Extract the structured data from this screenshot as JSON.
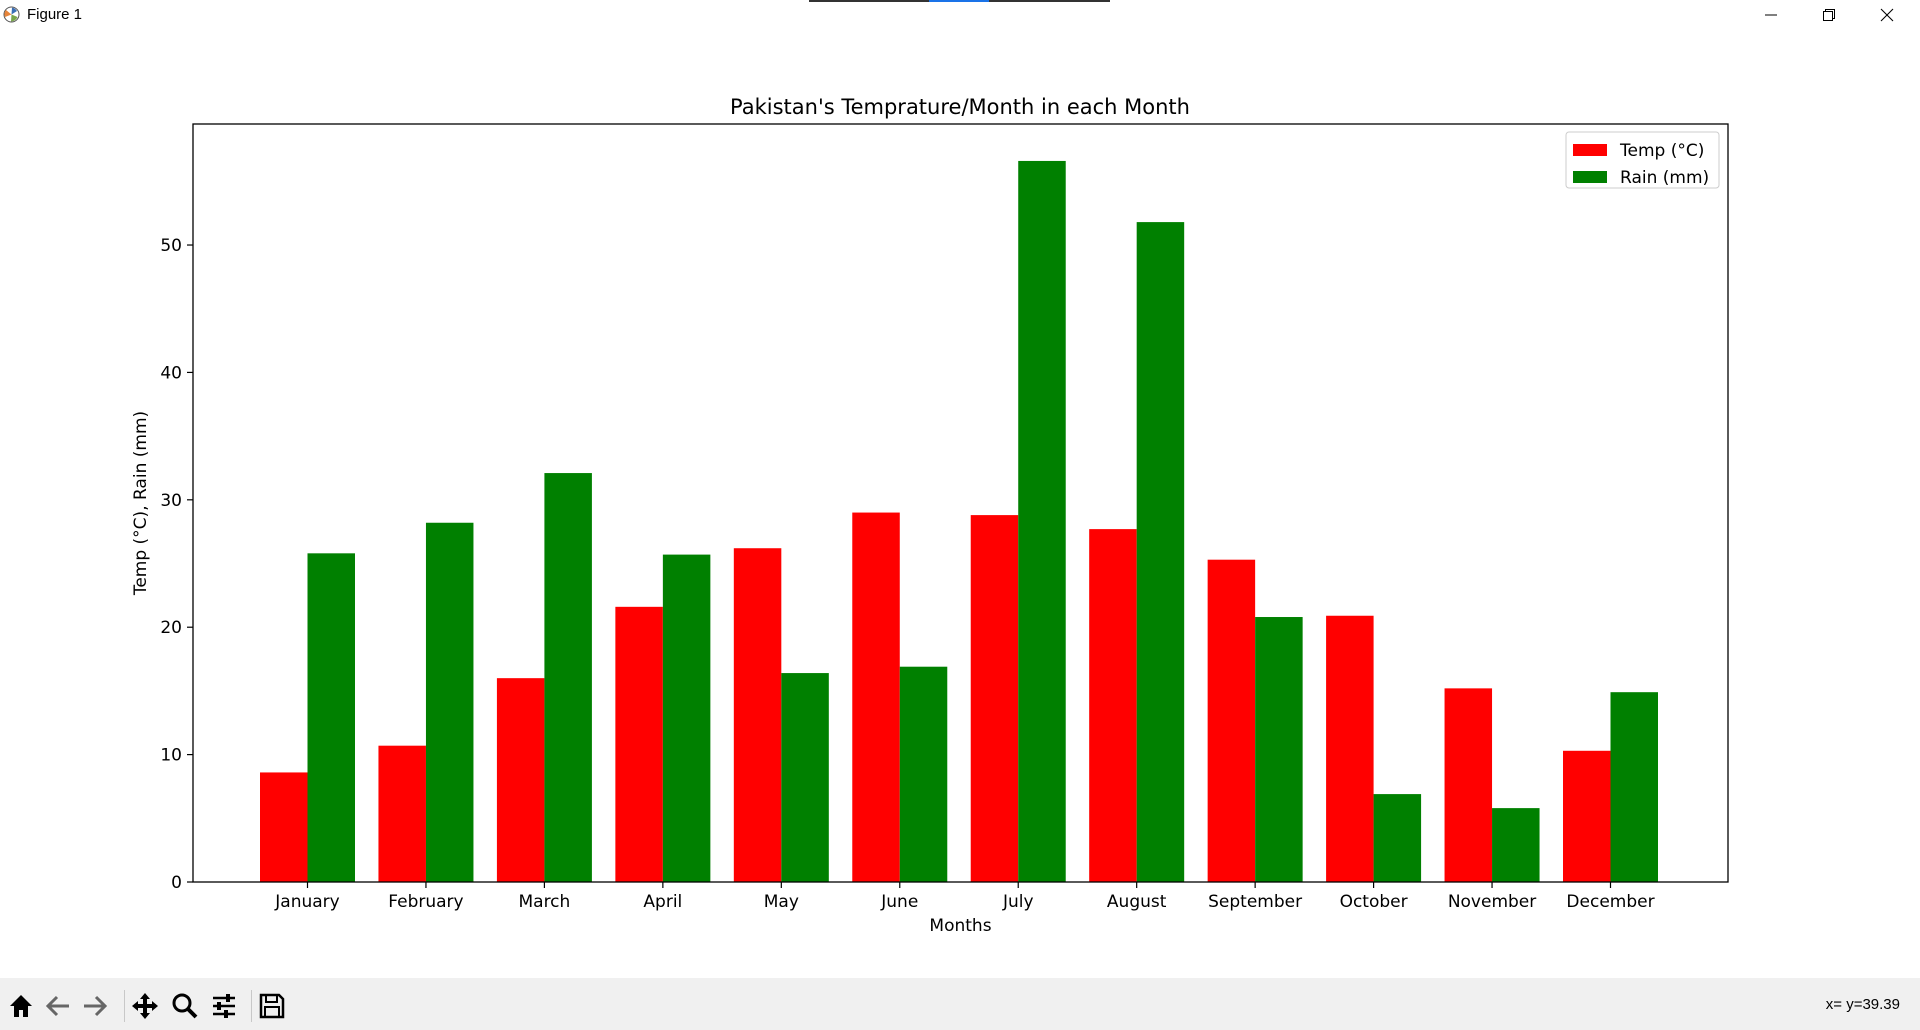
{
  "window": {
    "title": "Figure 1"
  },
  "icons": {
    "app": "matplotlib-icon",
    "minimize": "minimize-icon",
    "maximize": "restore-icon",
    "close": "close-icon",
    "home": "home-icon",
    "back": "arrow-left-icon",
    "forward": "arrow-right-icon",
    "pan": "move-icon",
    "zoom": "magnifier-icon",
    "configure": "sliders-icon",
    "save": "floppy-disk-icon"
  },
  "status": {
    "coords": "x= y=39.39"
  },
  "colors": {
    "temp": "#ff0000",
    "rain": "#008000"
  },
  "chart_data": {
    "type": "bar",
    "title": "Pakistan's Temprature/Month in each Month",
    "xlabel": "Months",
    "ylabel": "Temp (°C), Rain (mm)",
    "categories": [
      "January",
      "February",
      "March",
      "April",
      "May",
      "June",
      "July",
      "August",
      "September",
      "October",
      "November",
      "December"
    ],
    "series": [
      {
        "name": "Temp (°C)",
        "color": "#ff0000",
        "values": [
          8.6,
          10.7,
          16.0,
          21.6,
          26.2,
          29.0,
          28.8,
          27.7,
          25.3,
          20.9,
          15.2,
          10.3
        ]
      },
      {
        "name": "Rain (mm)",
        "color": "#008000",
        "values": [
          25.8,
          28.2,
          32.1,
          25.7,
          16.4,
          16.9,
          56.6,
          51.8,
          20.8,
          6.9,
          5.8,
          14.9
        ]
      }
    ],
    "ylim": [
      0,
      59.5
    ],
    "yticks": [
      0,
      10,
      20,
      30,
      40,
      50
    ],
    "legend": "top-right",
    "grid": false
  }
}
